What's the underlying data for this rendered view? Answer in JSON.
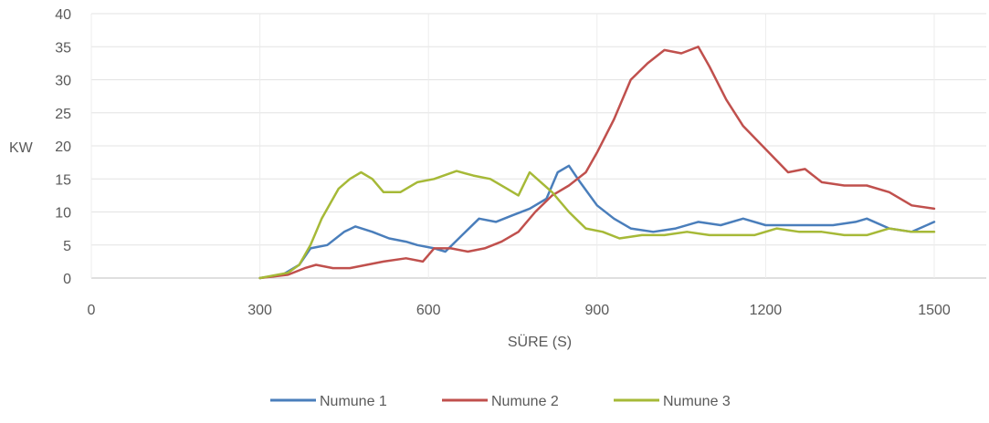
{
  "chart_data": {
    "type": "line",
    "title": "",
    "xlabel": "SÜRE (S)",
    "ylabel": "KW",
    "xlim": [
      0,
      1500
    ],
    "ylim": [
      0,
      40
    ],
    "xticks": [
      0,
      300,
      600,
      900,
      1200,
      1500
    ],
    "yticks": [
      0,
      5,
      10,
      15,
      20,
      25,
      30,
      35,
      40
    ],
    "grid": true,
    "legend": "bottom",
    "series": [
      {
        "name": "Numune 1",
        "color": "#4a7ebb",
        "x": [
          300,
          340,
          370,
          390,
          420,
          450,
          470,
          500,
          530,
          560,
          580,
          610,
          630,
          660,
          690,
          720,
          750,
          780,
          810,
          830,
          850,
          870,
          900,
          930,
          960,
          1000,
          1040,
          1080,
          1120,
          1160,
          1200,
          1240,
          1280,
          1320,
          1360,
          1380,
          1420,
          1460,
          1500
        ],
        "y": [
          0,
          0.5,
          2,
          4.5,
          5,
          7,
          7.8,
          7,
          6,
          5.5,
          5,
          4.5,
          4,
          6.5,
          9,
          8.5,
          9.5,
          10.5,
          12,
          16,
          17,
          14.5,
          11,
          9,
          7.5,
          7,
          7.5,
          8.5,
          8,
          9,
          8,
          8,
          8,
          8,
          8.5,
          9,
          7.5,
          7,
          8.5
        ]
      },
      {
        "name": "Numune 2",
        "color": "#c0504d",
        "x": [
          300,
          350,
          380,
          400,
          430,
          460,
          490,
          520,
          560,
          590,
          610,
          640,
          670,
          700,
          730,
          760,
          790,
          820,
          850,
          880,
          900,
          930,
          960,
          990,
          1020,
          1050,
          1080,
          1100,
          1130,
          1160,
          1200,
          1240,
          1270,
          1300,
          1340,
          1380,
          1420,
          1460,
          1500
        ],
        "y": [
          0,
          0.5,
          1.5,
          2,
          1.5,
          1.5,
          2,
          2.5,
          3,
          2.5,
          4.5,
          4.5,
          4,
          4.5,
          5.5,
          7,
          10,
          12.5,
          14,
          16,
          19,
          24,
          30,
          32.5,
          34.5,
          34,
          35,
          32,
          27,
          23,
          19.5,
          16,
          16.5,
          14.5,
          14,
          14,
          13,
          11,
          10.5
        ]
      },
      {
        "name": "Numune 3",
        "color": "#a6b937",
        "x": [
          300,
          350,
          370,
          390,
          410,
          440,
          460,
          480,
          500,
          520,
          550,
          580,
          610,
          650,
          680,
          710,
          740,
          760,
          780,
          800,
          820,
          850,
          880,
          910,
          940,
          980,
          1020,
          1060,
          1100,
          1140,
          1180,
          1220,
          1260,
          1300,
          1340,
          1380,
          1420,
          1460,
          1500
        ],
        "y": [
          0,
          0.8,
          2,
          5,
          9,
          13.5,
          15,
          16,
          15,
          13,
          13,
          14.5,
          15,
          16.2,
          15.5,
          15,
          13.5,
          12.5,
          16,
          14.5,
          13,
          10,
          7.5,
          7,
          6,
          6.5,
          6.5,
          7,
          6.5,
          6.5,
          6.5,
          7.5,
          7,
          7,
          6.5,
          6.5,
          7.5,
          7,
          7
        ]
      }
    ]
  }
}
